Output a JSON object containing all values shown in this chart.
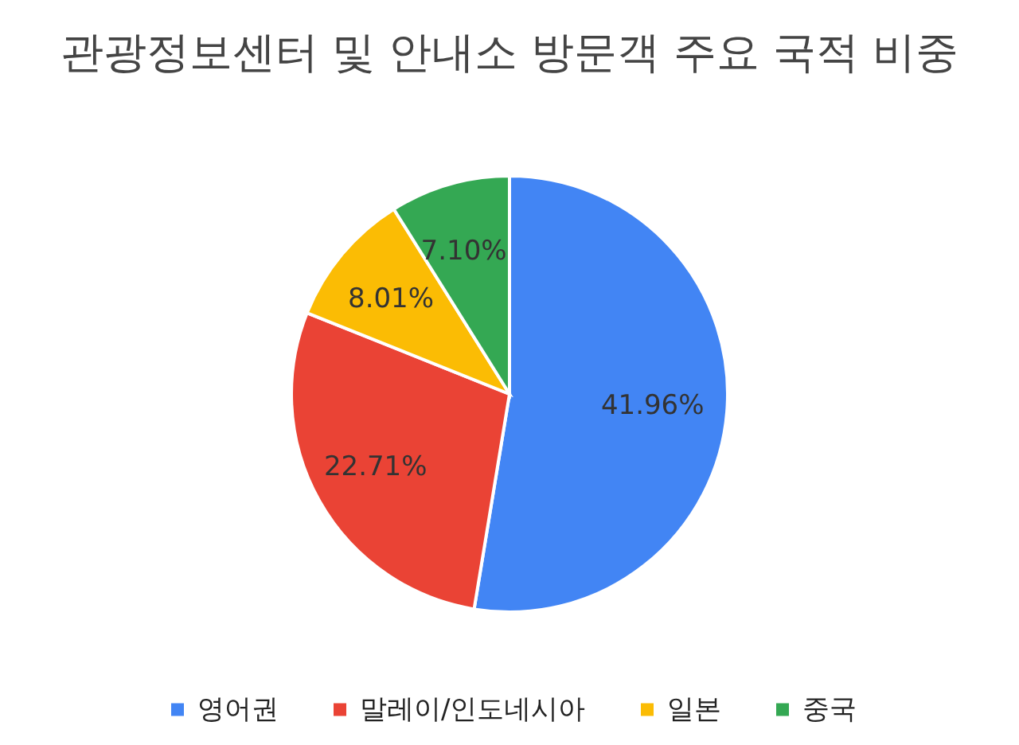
{
  "chart_data": {
    "type": "pie",
    "title": "관광정보센터 및 안내소 방문객 주요 국적 비중",
    "categories": [
      "영어권",
      "말레이/인도네시아",
      "일본",
      "중국"
    ],
    "values": [
      41.96,
      22.71,
      8.01,
      7.1
    ],
    "value_labels": [
      "41.96%",
      "22.71%",
      "8.01%",
      "7.10%"
    ],
    "colors": [
      "#4285f4",
      "#ea4335",
      "#fbbc04",
      "#34a853"
    ],
    "legend": "bottom"
  }
}
